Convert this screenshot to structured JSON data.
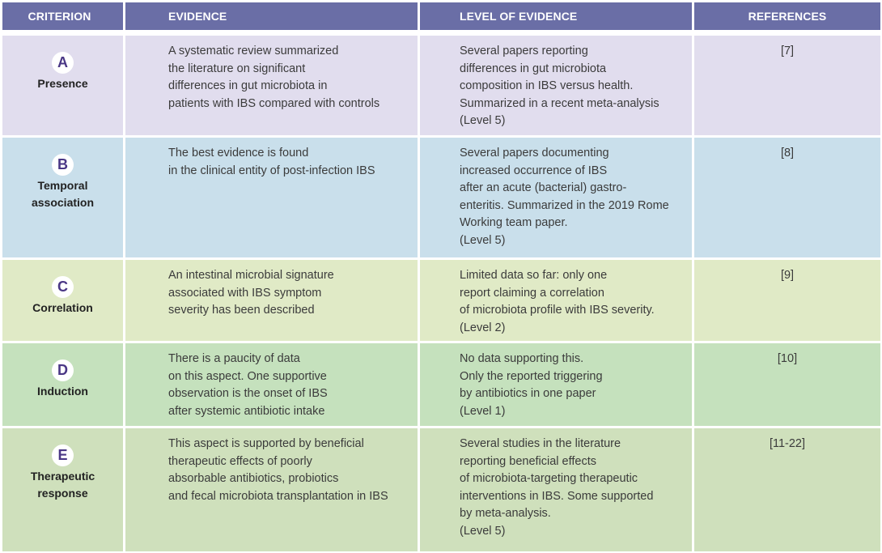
{
  "headers": {
    "criterion": "CRITERION",
    "evidence": "EVIDENCE",
    "level": "LEVEL OF EVIDENCE",
    "references": "REFERENCES"
  },
  "colors": {
    "header": "#6a6ea6",
    "letter": "#4a3785"
  },
  "rows": [
    {
      "letter": "A",
      "criterion": "Presence",
      "evidence": "A systematic review summarized\nthe literature on significant\ndifferences in gut microbiota in\npatients with IBS compared with controls",
      "level": "Several papers reporting\n differences in gut microbiota\ncomposition in IBS versus health.\nSummarized in a recent meta-analysis\n(Level 5)",
      "references": "[7]",
      "color": "#e1ddee"
    },
    {
      "letter": "B",
      "criterion": "Temporal\nassociation",
      "evidence": "The best evidence is found\nin the clinical entity of post-infection IBS",
      "level": "Several papers documenting\nincreased occurrence of IBS\nafter an acute (bacterial) gastro-\nenteritis. Summarized in the 2019 Rome\nWorking team paper.\n(Level 5)",
      "references": "[8]",
      "color": "#c9dfeb"
    },
    {
      "letter": "C",
      "criterion": "Correlation",
      "evidence": "An intestinal microbial signature\nassociated with IBS symptom\nseverity has been described",
      "level": "Limited data so far: only one\nreport claiming a correlation\nof microbiota profile with IBS severity.\n(Level 2)",
      "references": "[9]",
      "color": "#e0eac6"
    },
    {
      "letter": "D",
      "criterion": "Induction",
      "evidence": "There is a paucity of data\non this aspect. One supportive\nobservation is the onset of IBS\nafter systemic antibiotic intake",
      "level": "No data supporting this.\nOnly the reported triggering\nby antibiotics in one paper\n(Level 1)",
      "references": "[10]",
      "color": "#c5e1bd"
    },
    {
      "letter": "E",
      "criterion": "Therapeutic\nresponse",
      "evidence": "This aspect is supported by beneficial\ntherapeutic effects of poorly\nabsorbable antibiotics, probiotics\nand fecal microbiota transplantation in IBS",
      "level": "Several studies in the literature\nreporting beneficial effects\nof microbiota-targeting therapeutic\ninterventions in IBS. Some supported\nby meta-analysis.\n(Level 5)",
      "references": "[11-22]",
      "color": "#cfe0bc"
    }
  ]
}
